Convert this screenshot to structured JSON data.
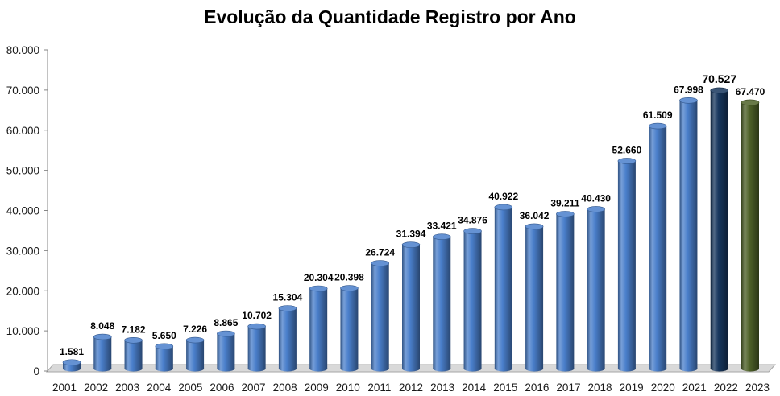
{
  "chart_data": {
    "type": "bar",
    "bar_shape": "3d-cylinder",
    "title": "Evolução da Quantidade Registro por Ano",
    "xlabel": "",
    "ylabel": "",
    "categories": [
      "2001",
      "2002",
      "2003",
      "2004",
      "2005",
      "2006",
      "2007",
      "2008",
      "2009",
      "2010",
      "2011",
      "2012",
      "2013",
      "2014",
      "2015",
      "2016",
      "2017",
      "2018",
      "2019",
      "2020",
      "2021",
      "2022",
      "2023"
    ],
    "values": [
      1581,
      8048,
      7182,
      5650,
      7226,
      8865,
      10702,
      15304,
      20304,
      20398,
      26724,
      31394,
      33421,
      34876,
      40922,
      36042,
      39211,
      40430,
      52660,
      61509,
      67998,
      70527,
      67470
    ],
    "data_labels": [
      "1.581",
      "8.048",
      "7.182",
      "5.650",
      "7.226",
      "8.865",
      "10.702",
      "15.304",
      "20.304",
      "20.398",
      "26.724",
      "31.394",
      "33.421",
      "34.876",
      "40.922",
      "36.042",
      "39.211",
      "40.430",
      "52.660",
      "61.509",
      "67.998",
      "70.527",
      "67.470"
    ],
    "ylim": [
      0,
      80000
    ],
    "yticks": [
      0,
      10000,
      20000,
      30000,
      40000,
      50000,
      60000,
      70000,
      80000
    ],
    "ytick_labels": [
      "0",
      "10.000",
      "20.000",
      "30.000",
      "40.000",
      "50.000",
      "60.000",
      "70.000",
      "80.000"
    ],
    "grid": false,
    "legend": "none",
    "colors": {
      "default": "#4A7FCB",
      "2022": "#17375E",
      "2023": "#4F6228"
    }
  }
}
